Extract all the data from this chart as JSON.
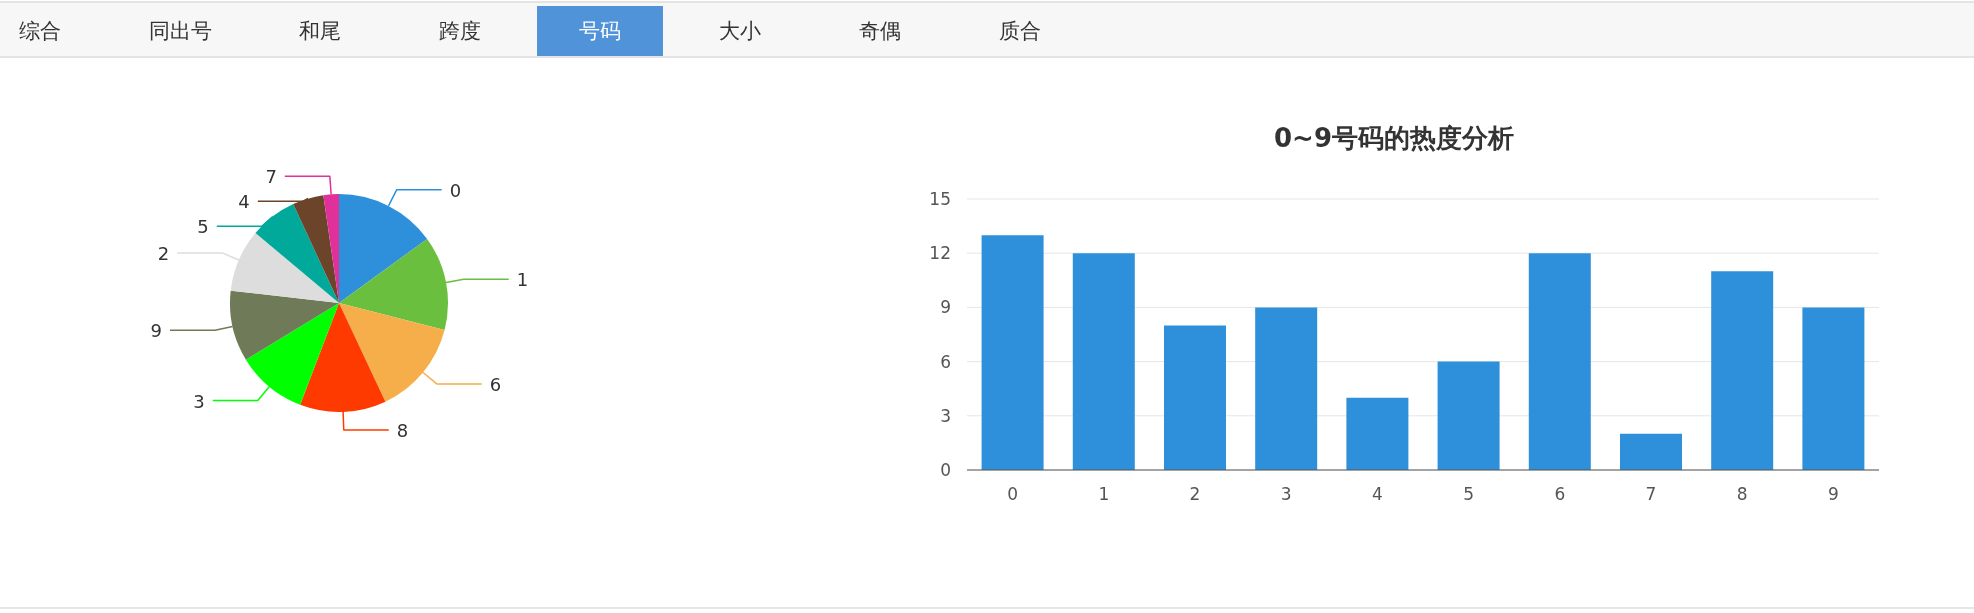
{
  "chart_data": [
    {
      "type": "other",
      "annotations": [
        "综合",
        "同出号",
        "和尾",
        "跨度",
        "号码",
        "大小",
        "奇偶",
        "质合"
      ]
    },
    {
      "type": "pie",
      "categories": [
        "0",
        "1",
        "6",
        "8",
        "3",
        "9",
        "2",
        "5",
        "4",
        "7"
      ],
      "values": [
        15,
        14,
        14,
        12.8,
        10.5,
        10.5,
        9.3,
        7,
        4.6,
        2.3
      ],
      "colors": [
        "#2e90da",
        "#6abf3e",
        "#f5ae4a",
        "#ff3a00",
        "#00ff00",
        "#6f7b58",
        "#dddddd",
        "#00a99a",
        "#6b4429",
        "#e0319a"
      ]
    },
    {
      "type": "bar",
      "title": "0~9号码的热度分析",
      "categories": [
        "0",
        "1",
        "2",
        "3",
        "4",
        "5",
        "6",
        "7",
        "8",
        "9"
      ],
      "values": [
        13,
        12,
        8,
        9,
        4,
        6,
        12,
        2,
        11,
        9
      ],
      "color": "#2e90da",
      "ylim": [
        0,
        15
      ],
      "yticks": [
        0,
        3,
        6,
        9,
        12,
        15
      ],
      "grid": "y"
    }
  ]
}
